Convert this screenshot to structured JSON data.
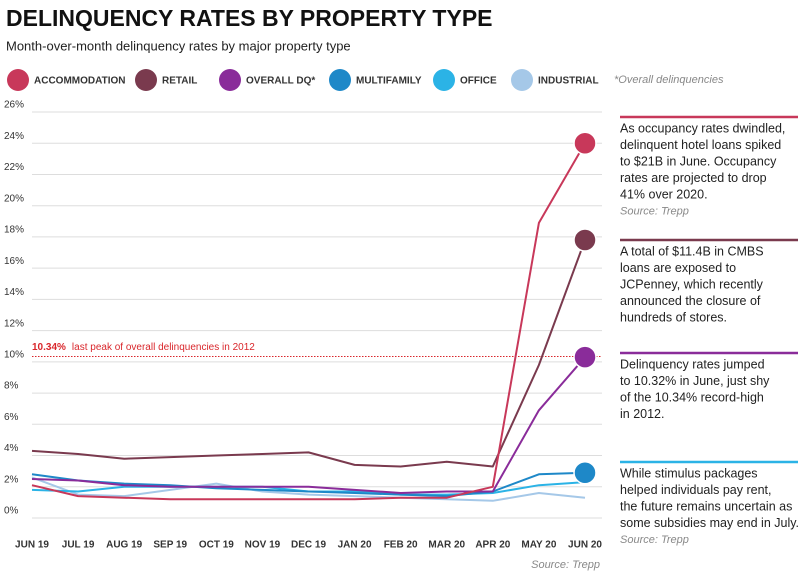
{
  "chart_data": {
    "type": "line",
    "title": "DELINQUENCY RATES BY PROPERTY TYPE",
    "subtitle": "Month-over-month delinquency rates by major property type",
    "legend_note": "*Overall delinquencies",
    "source": "Source: Trepp",
    "categories": [
      "JUN 19",
      "JUL 19",
      "AUG 19",
      "SEP 19",
      "OCT 19",
      "NOV 19",
      "DEC 19",
      "JAN 20",
      "FEB 20",
      "MAR 20",
      "APR 20",
      "MAY 20",
      "JUN 20"
    ],
    "ylim": [
      0,
      26
    ],
    "yticks": [
      {
        "value": 0,
        "label": "0%"
      },
      {
        "value": 2,
        "label": "2%"
      },
      {
        "value": 4,
        "label": "4%"
      },
      {
        "value": 6,
        "label": "6%"
      },
      {
        "value": 8,
        "label": "8%"
      },
      {
        "value": 10,
        "label": "10%"
      },
      {
        "value": 12,
        "label": "12%"
      },
      {
        "value": 14,
        "label": "14%"
      },
      {
        "value": 16,
        "label": "16%"
      },
      {
        "value": 18,
        "label": "18%"
      },
      {
        "value": 20,
        "label": "20%"
      },
      {
        "value": 22,
        "label": "22%"
      },
      {
        "value": 24,
        "label": "24%"
      },
      {
        "value": 26,
        "label": "26%"
      }
    ],
    "grid": true,
    "series": [
      {
        "name": "ACCOMMODATION",
        "color": "#c8385a",
        "end_marker": true,
        "values": [
          2.1,
          1.4,
          1.3,
          1.2,
          1.2,
          1.2,
          1.2,
          1.2,
          1.3,
          1.3,
          2.0,
          18.9,
          24.0
        ]
      },
      {
        "name": "RETAIL",
        "color": "#7a3a4e",
        "end_marker": true,
        "values": [
          4.3,
          4.1,
          3.8,
          3.9,
          4.0,
          4.1,
          4.2,
          3.4,
          3.3,
          3.6,
          3.3,
          9.8,
          17.8
        ]
      },
      {
        "name": "OVERALL DQ*",
        "color": "#8a2c9a",
        "end_marker": true,
        "values": [
          2.5,
          2.4,
          2.1,
          2.0,
          2.0,
          2.0,
          2.0,
          1.8,
          1.6,
          1.7,
          1.7,
          6.9,
          10.3
        ]
      },
      {
        "name": "MULTIFAMILY",
        "color": "#1e88c8",
        "end_marker": true,
        "values": [
          2.8,
          2.4,
          2.2,
          2.1,
          1.9,
          1.8,
          1.7,
          1.6,
          1.5,
          1.4,
          1.7,
          2.8,
          2.9
        ]
      },
      {
        "name": "OFFICE",
        "color": "#2bb3e6",
        "end_marker": false,
        "values": [
          1.8,
          1.7,
          2.0,
          2.0,
          2.0,
          2.0,
          1.7,
          1.7,
          1.5,
          1.5,
          1.6,
          2.1,
          2.3
        ]
      },
      {
        "name": "INDUSTRIAL",
        "color": "#a5c8e8",
        "end_marker": false,
        "values": [
          2.6,
          1.5,
          1.4,
          1.8,
          2.2,
          1.7,
          1.5,
          1.4,
          1.3,
          1.2,
          1.1,
          1.6,
          1.3
        ]
      }
    ],
    "reference_line": {
      "value": 10.34,
      "label": "10.34%",
      "text": "last peak of overall delinquencies in 2012",
      "color": "#d9262b"
    },
    "annotations": [
      {
        "color": "#c8385a",
        "lines": [
          "As occupancy rates dwindled,",
          "delinquent hotel loans spiked",
          "to $21B in June. Occupancy",
          "rates are projected to drop",
          "41% over 2020."
        ],
        "source": "Source: Trepp"
      },
      {
        "color": "#7a3a4e",
        "lines": [
          "A total of $11.4B in CMBS",
          "loans are exposed to",
          "JCPenney, which recently",
          "announced the closure of",
          "hundreds of stores."
        ]
      },
      {
        "color": "#8a2c9a",
        "lines": [
          "Delinquency rates jumped",
          "to 10.32% in June, just shy",
          "of the 10.34% record-high",
          "in 2012."
        ]
      },
      {
        "color": "#2bb3e6",
        "lines": [
          "While stimulus packages",
          "helped individuals pay rent,",
          "the future remains uncertain as",
          "some subsidies may end in July."
        ],
        "source": "Source: Trepp"
      }
    ]
  }
}
